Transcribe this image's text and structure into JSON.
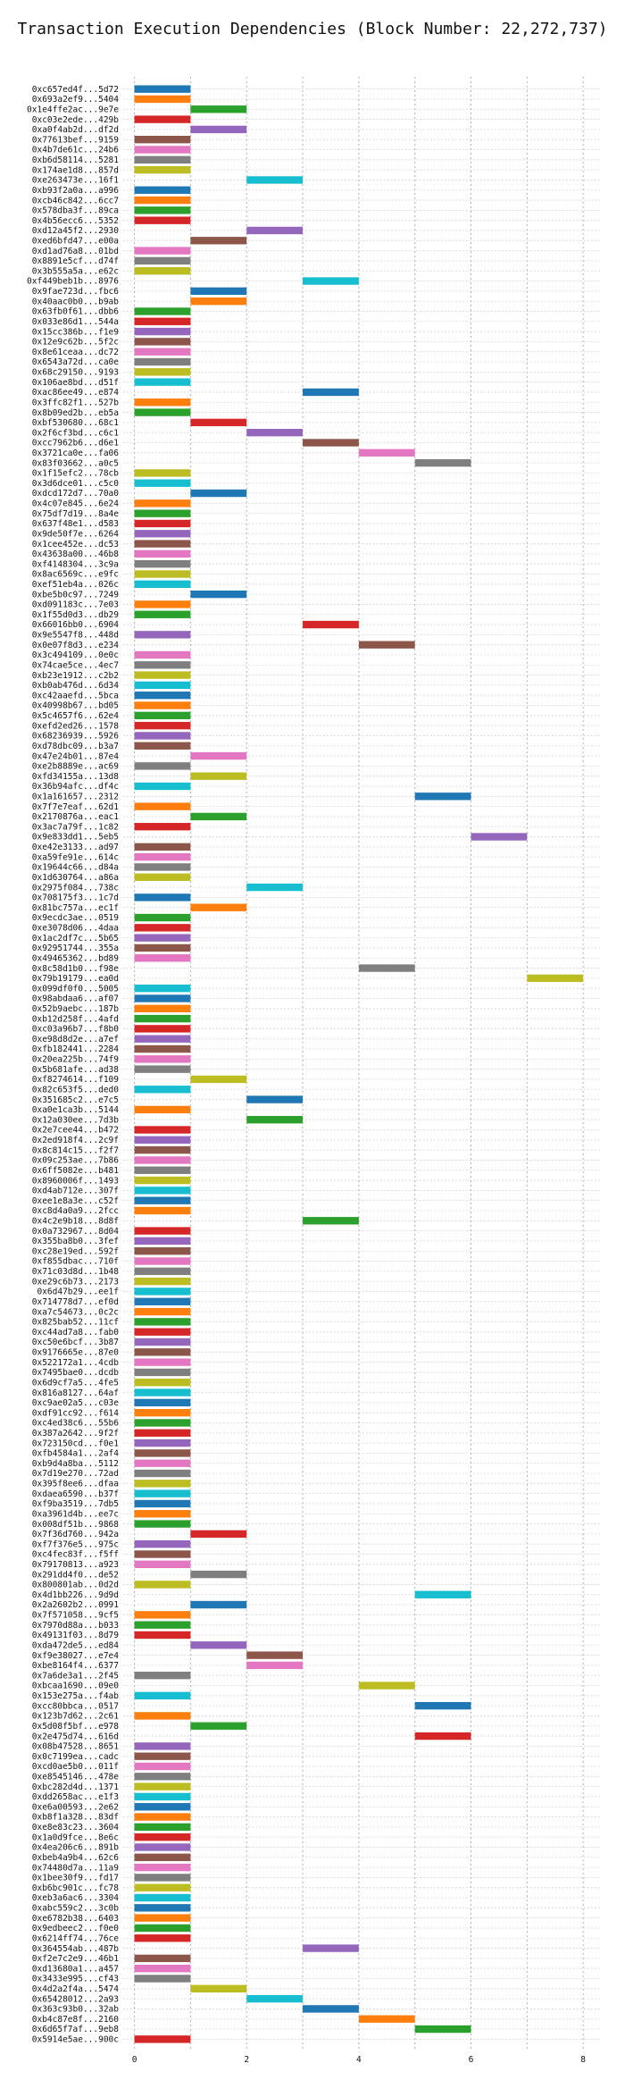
{
  "chart_data": {
    "type": "bar",
    "orientation": "horizontal",
    "title": "Transaction Execution Dependencies (Block Number: 22,272,737)",
    "xlabel": "",
    "ylabel": "",
    "xlim": [
      -0.2,
      8.3
    ],
    "x_ticks": [
      0,
      2,
      4,
      6,
      8
    ],
    "grid": "dotted",
    "legend": "none",
    "colors": [
      "#1f77b4",
      "#ff7f0e",
      "#2ca02c",
      "#d62728",
      "#9467bd",
      "#8c564b",
      "#e377c2",
      "#7f7f7f",
      "#bcbd22",
      "#17becf"
    ],
    "categories": [
      "0xc657ed4f...5d72",
      "0x693a2ef9...5404",
      "0x1e4ffe2ac...9e7e",
      "0xc03e2ede...429b",
      "0xa0f4ab2d...df2d",
      "0x77613bef...9159",
      "0x4b7de61c...24b6",
      "0xb6d58114...5281",
      "0x174ae1d8...857d",
      "0xe263473e...16f1",
      "0xb93f2a0a...a996",
      "0xcb46c842...6cc7",
      "0x578dba3f...89ca",
      "0x4b56ecc6...5352",
      "0xd12a45f2...2930",
      "0xed6bfd47...e00a",
      "0xd1ad76a8...01bd",
      "0x8891e5cf...d74f",
      "0x3b555a5a...e62c",
      "0xf449beb1b...8976",
      "0x9fae723d...fbc6",
      "0x40aac0b0...b9ab",
      "0x63fb0f61...dbb6",
      "0x033e86d1...544a",
      "0x15cc386b...f1e9",
      "0x12e9c62b...5f2c",
      "0x8e61ceaa...dc72",
      "0x6543a72d...ca0e",
      "0x68c29150...9193",
      "0x106ae8bd...d51f",
      "0xac86ee49...e874",
      "0x3ffc82f1...527b",
      "0x8b09ed2b...eb5a",
      "0xbf530680...68c1",
      "0x2f6cf3bd...c6c1",
      "0xcc7962b6...d6e1",
      "0x3721ca0e...fa06",
      "0x83f03662...a0c5",
      "0x1f15efc2...78cb",
      "0x3d6dce01...c5c0",
      "0xdcd172d7...70a0",
      "0x4c07e845...6e24",
      "0x75df7d19...8a4e",
      "0x637f48e1...d583",
      "0x9de50f7e...6264",
      "0x1cee452e...dc53",
      "0x43638a00...46b8",
      "0xf4148304...3c9a",
      "0x8ac6569c...e9fc",
      "0xef51eb4a...026c",
      "0xbe5b0c97...7249",
      "0xd091183c...7e03",
      "0x1f55d0d3...db29",
      "0x66016bb0...6904",
      "0x9e5547f8...448d",
      "0x0e07f8d3...e234",
      "0x3c494109...0e0c",
      "0x74cae5ce...4ec7",
      "0xb23e1912...c2b2",
      "0xb0ab476d...6d34",
      "0xc42aaefd...5bca",
      "0x40998b67...bd05",
      "0x5c4657f6...62e4",
      "0xefd2ed26...1578",
      "0x68236939...5926",
      "0xd78dbc09...b3a7",
      "0x47e24b01...87e4",
      "0xe2b8889e...ac69",
      "0xfd34155a...13d8",
      "0x36b94afc...df4c",
      "0x1a161657...2312",
      "0x7f7e7eaf...62d1",
      "0x2170876a...eac1",
      "0x3ac7a79f...1c82",
      "0x9e833dd1...5eb5",
      "0xe42e3133...ad97",
      "0xa59fe91e...614c",
      "0x19644c66...d84a",
      "0x1d630764...a86a",
      "0x2975f084...738c",
      "0x708175f3...1c7d",
      "0x81bc757a...ec1f",
      "0x9ecdc3ae...0519",
      "0xe3078d06...4daa",
      "0x1ac2df7c...5b65",
      "0x92951744...355a",
      "0x49465362...bd89",
      "0x8c58d1b0...f98e",
      "0x79b19179...ea0d",
      "0x099df0f0...5005",
      "0x98abdaa6...af07",
      "0x52b9aebc...187b",
      "0xb12d258f...4afd",
      "0xc03a96b7...f8b0",
      "0xe98d8d2e...a7ef",
      "0xfb182441...2284",
      "0x20ea225b...74f9",
      "0x5b681afe...ad38",
      "0xf8274614...f109",
      "0x82c653f5...ded0",
      "0x351685c2...e7c5",
      "0xa0e1ca3b...5144",
      "0x12a030ee...7d3b",
      "0x2e7cee44...b472",
      "0x2ed918f4...2c9f",
      "0x8c814c15...f2f7",
      "0x09c253ae...7b86",
      "0x6ff5082e...b481",
      "0x8960006f...1493",
      "0xd4ab712e...307f",
      "0xee1e8a3e...c52f",
      "0xc8d4a0a9...2fcc",
      "0x4c2e9b18...8d8f",
      "0x0a732967...8d04",
      "0x355ba8b0...3fef",
      "0xc28e19ed...592f",
      "0xf855dbac...710f",
      "0x71c03d8d...1b48",
      "0xe29c6b73...2173",
      "0x6d47b29...ee1f",
      "0x714778d7...ef0d",
      "0xa7c54673...0c2c",
      "0x825bab52...11cf",
      "0xc44ad7a8...fab0",
      "0xc50e6bcf...3b87",
      "0x9176665e...87e0",
      "0x522172a1...4cdb",
      "0x7495bae0...dcdb",
      "0x6d9cf7a5...4fe5",
      "0x816a8127...64af",
      "0xc9ae02a5...c03e",
      "0xdf91cc92...f614",
      "0xc4ed38c6...55b6",
      "0x387a2642...9f2f",
      "0x723150cd...f0e1",
      "0xfb4584a1...2af4",
      "0xb9d4a8ba...5112",
      "0x7d19e270...72ad",
      "0x395f8ee6...dfaa",
      "0xdaea6590...b37f",
      "0xf9ba3519...7db5",
      "0xa3961d4b...ee7c",
      "0x008df51b...9868",
      "0x7f36d760...942a",
      "0xf7f376e5...975c",
      "0xc4fec83f...f5ff",
      "0x79170813...a923",
      "0x291dd4f0...de52",
      "0x800801ab...0d2d",
      "0x4d1bb226...9d9d",
      "0x2a2602b2...0991",
      "0x7f571058...9cf5",
      "0x7970d88a...b033",
      "0x49131f03...8d79",
      "0xda472de5...ed84",
      "0xf9e38027...e7e4",
      "0xbe8164f4...6377",
      "0x7a6de3a1...2f45",
      "0xbcaa1690...09e0",
      "0x153e275a...f4ab",
      "0xcc80bbca...0517",
      "0x123b7d62...2c61",
      "0x5d08f5bf...e978",
      "0x2e475d74...616d",
      "0x08b47528...8651",
      "0x0c7199ea...cadc",
      "0xcd0ae5b0...011f",
      "0xe8545146...478e",
      "0xbc282d4d...1371",
      "0xdd2658ac...e1f3",
      "0xe6a00593...2e62",
      "0xb8f1a328...83df",
      "0xe8e83c23...3604",
      "0x1a0d9fce...8e6c",
      "0x4ea206c6...891b",
      "0xbeb4a9b4...62c6",
      "0x74480d7a...11a9",
      "0x1bee30f9...fd17",
      "0xb6bc901c...fc78",
      "0xeb3a6ac6...3304",
      "0xabc559c2...3c0b",
      "0xe6782b38...6403",
      "0x9edbeec2...f0e0",
      "0x6214ff74...76ce",
      "0x364554ab...487b",
      "0xf2e7c2e9...46b1",
      "0xd13680a1...a457",
      "0x3433e995...cf43",
      "0x4d2a2f4a...5474",
      "0x65428012...2a93",
      "0x363c93b0...32ab",
      "0xb4c87e8f...2160",
      "0x6d65f7af...9eb8",
      "0x5914e5ae...900c"
    ],
    "start": [
      0,
      0,
      1,
      0,
      1,
      0,
      0,
      0,
      0,
      2,
      0,
      0,
      0,
      0,
      2,
      1,
      0,
      0,
      0,
      3,
      1,
      1,
      0,
      0,
      0,
      0,
      0,
      0,
      0,
      0,
      3,
      0,
      0,
      1,
      2,
      3,
      4,
      5,
      0,
      0,
      1,
      0,
      0,
      0,
      0,
      0,
      0,
      0,
      0,
      0,
      1,
      0,
      0,
      3,
      0,
      4,
      0,
      0,
      0,
      0,
      0,
      0,
      0,
      0,
      0,
      0,
      1,
      0,
      1,
      0,
      5,
      0,
      1,
      0,
      6,
      0,
      0,
      0,
      0,
      2,
      0,
      1,
      0,
      0,
      0,
      0,
      0,
      4,
      7,
      0,
      0,
      0,
      0,
      0,
      0,
      0,
      0,
      0,
      1,
      0,
      2,
      0,
      2,
      0,
      0,
      0,
      0,
      0,
      0,
      0,
      0,
      0,
      3,
      0,
      0,
      0,
      0,
      0,
      0,
      0,
      0,
      0,
      0,
      0,
      0,
      0,
      0,
      0,
      0,
      0,
      0,
      0,
      0,
      0,
      0,
      0,
      0,
      0,
      0,
      0,
      0,
      0,
      0,
      1,
      0,
      0,
      0,
      1,
      0,
      5,
      1,
      0,
      0,
      0,
      1,
      2,
      2,
      0,
      4,
      0,
      5,
      0,
      1,
      5,
      0,
      0,
      0,
      0,
      0,
      0,
      0,
      0,
      0,
      0,
      0,
      0,
      0,
      0,
      0,
      0,
      0,
      0,
      0,
      0,
      3,
      0,
      0,
      0,
      1,
      2,
      3,
      4,
      5,
      0,
      0
    ],
    "color_index": [
      0,
      1,
      2,
      3,
      4,
      5,
      6,
      7,
      8,
      9,
      0,
      1,
      2,
      3,
      4,
      5,
      6,
      7,
      8,
      9,
      0,
      1,
      2,
      3,
      4,
      5,
      6,
      7,
      8,
      9,
      0,
      1,
      2,
      3,
      4,
      5,
      6,
      7,
      8,
      9,
      0,
      1,
      2,
      3,
      4,
      5,
      6,
      7,
      8,
      9,
      0,
      1,
      2,
      3,
      4,
      5,
      6,
      7,
      8,
      9,
      0,
      1,
      2,
      3,
      4,
      5,
      6,
      7,
      8,
      9,
      0,
      1,
      2,
      3,
      4,
      5,
      6,
      7,
      8,
      9,
      0,
      1,
      2,
      3,
      4,
      5,
      6,
      7,
      8,
      9,
      0,
      1,
      2,
      3,
      4,
      5,
      6,
      7,
      8,
      9,
      0,
      1,
      2,
      3,
      4,
      5,
      6,
      7,
      8,
      9,
      0,
      1,
      2,
      3,
      4,
      5,
      6,
      7,
      8,
      9,
      0,
      1,
      2,
      3,
      4,
      5,
      6,
      7,
      8,
      9,
      0,
      1,
      2,
      3,
      4,
      5,
      6,
      7,
      8,
      9,
      0,
      1,
      2,
      3,
      4,
      5,
      6,
      7,
      8,
      9,
      0,
      1,
      2,
      3,
      4,
      5,
      6,
      7,
      8,
      9,
      0,
      1,
      2,
      3,
      4,
      5,
      6,
      7,
      8,
      9,
      0,
      1,
      2,
      3,
      4,
      5,
      6,
      7,
      8,
      9,
      0,
      1,
      2,
      3,
      4,
      5,
      6,
      7,
      8,
      9,
      0,
      1,
      2,
      3,
      4
    ],
    "duration": 1
  }
}
